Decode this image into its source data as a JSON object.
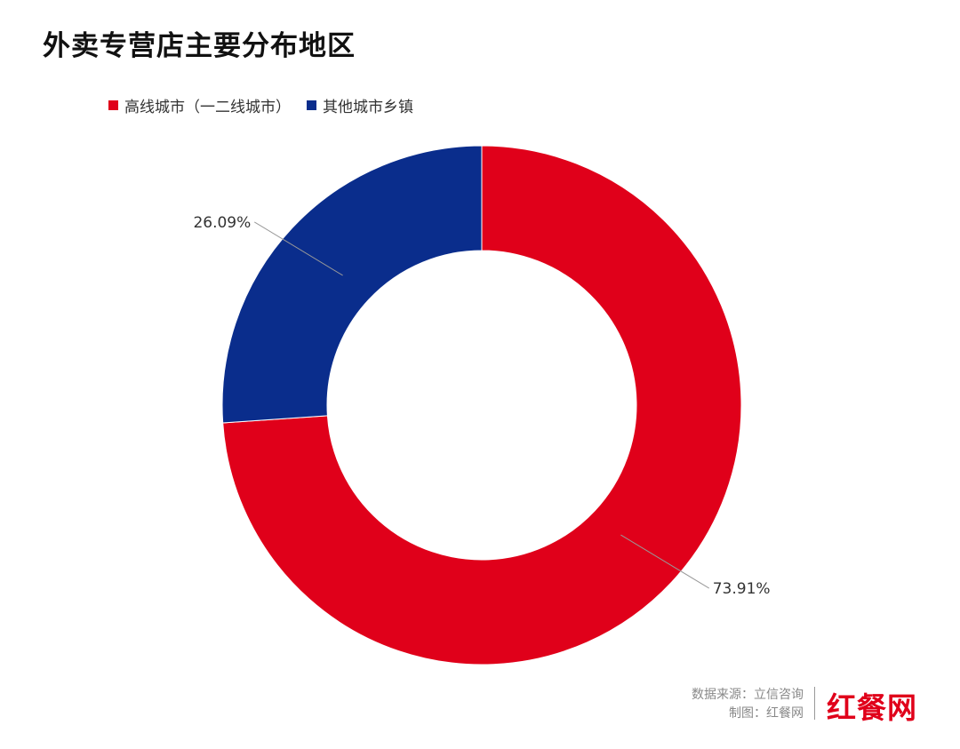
{
  "title": "外卖专营店主要分布地区",
  "source_line": "数据来源：立信咨询",
  "credit_line": "制图：红餐网",
  "logo_text": "红餐网",
  "colors": {
    "high_tier": "#e0001a",
    "other": "#0a2d8c",
    "logo": "#e0001a"
  },
  "chart_data": {
    "type": "pie",
    "variant": "donut",
    "title": "外卖专营店主要分布地区",
    "categories": [
      "高线城市（一二线城市）",
      "其他城市乡镇"
    ],
    "values": [
      73.91,
      26.09
    ],
    "data_labels": [
      "73.91%",
      "26.09%"
    ],
    "colors": [
      "#e0001a",
      "#0a2d8c"
    ],
    "legend": "top-left",
    "start": "12 o'clock",
    "direction": "clockwise"
  }
}
